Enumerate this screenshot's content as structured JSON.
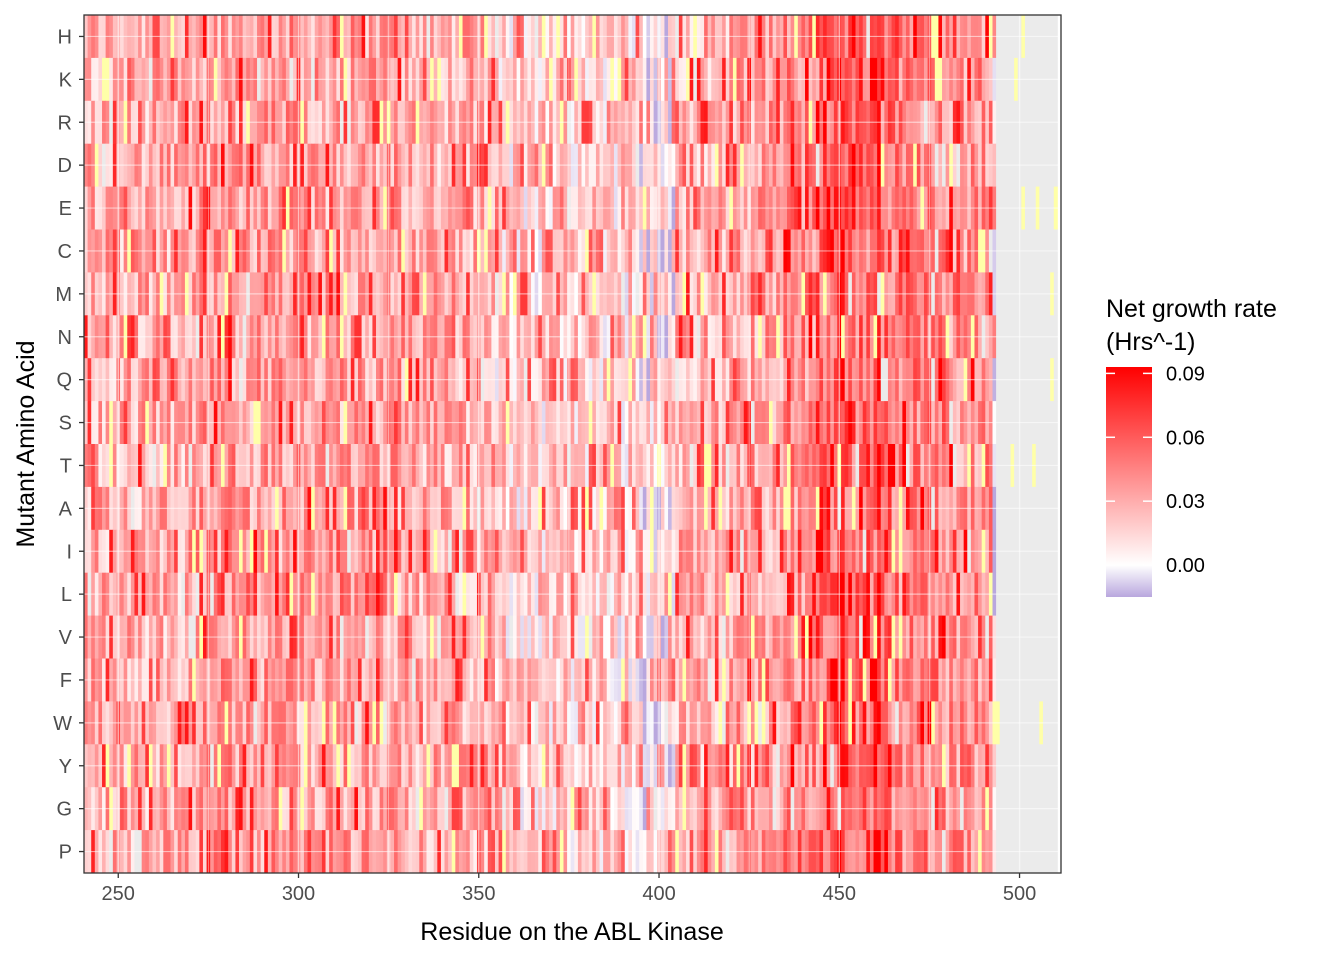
{
  "chart_data": {
    "type": "heatmap",
    "title": "",
    "xlabel": "Residue on the ABL Kinase",
    "ylabel": "Mutant Amino Acid",
    "xlim": [
      240.5,
      511.5
    ],
    "x_ticks": [
      250,
      300,
      350,
      400,
      450,
      500
    ],
    "x_residues": [
      241,
      510
    ],
    "data_end_residue": 493,
    "rows": [
      "H",
      "K",
      "R",
      "D",
      "E",
      "C",
      "M",
      "N",
      "Q",
      "S",
      "T",
      "A",
      "I",
      "L",
      "V",
      "F",
      "W",
      "Y",
      "G",
      "P"
    ],
    "legend": {
      "title_line1": "Net growth rate",
      "title_line2": "(Hrs^-1)",
      "ticks": [
        "0.09",
        "0.06",
        "0.03",
        "0.00"
      ],
      "tick_values": [
        0.09,
        0.06,
        0.03,
        0.0
      ],
      "min": -0.015,
      "max": 0.093,
      "position": "right"
    },
    "colors": {
      "high": "#ff0000",
      "mid": "#ffffff",
      "low": "#b9a7de",
      "na": "#ebebeb",
      "wildtype": "#ffffa8",
      "grid": "#ffffff",
      "panel_border": "#333333"
    },
    "value_profile": {
      "note": "Per-residue approximate mean growth rates by region (residue start, mean)",
      "segments": [
        [
          241,
          0.03
        ],
        [
          270,
          0.036
        ],
        [
          300,
          0.034
        ],
        [
          330,
          0.03
        ],
        [
          355,
          0.018
        ],
        [
          370,
          0.02
        ],
        [
          385,
          0.016
        ],
        [
          395,
          0.006
        ],
        [
          405,
          0.03
        ],
        [
          420,
          0.034
        ],
        [
          435,
          0.042
        ],
        [
          445,
          0.055
        ],
        [
          455,
          0.052
        ],
        [
          465,
          0.046
        ],
        [
          480,
          0.04
        ],
        [
          493,
          null
        ]
      ],
      "hotspots": [
        [
          450,
          0.085
        ],
        [
          451,
          0.08
        ],
        [
          460,
          0.082
        ],
        [
          461,
          0.078
        ],
        [
          444,
          0.07
        ],
        [
          456,
          0.074
        ]
      ]
    }
  }
}
